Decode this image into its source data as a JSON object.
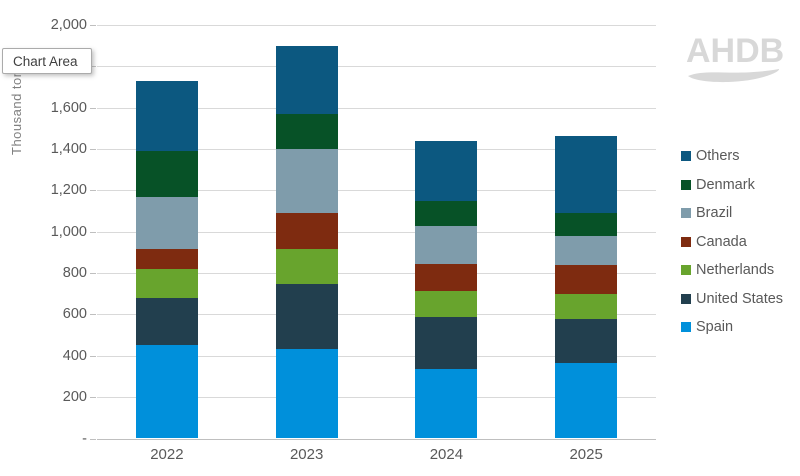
{
  "tooltip": {
    "label": "Chart Area"
  },
  "logo": {
    "text": "AHDB"
  },
  "palette": {
    "gridline": "#d9d9d9",
    "axis_line": "#bfbfbf",
    "axis_text": "#595959",
    "logo_gray": "#d8d8d8"
  },
  "chart_data": {
    "type": "bar",
    "stacked": true,
    "title": "",
    "xlabel": "",
    "ylabel": "Thousand tonnes",
    "grid": true,
    "legend_position": "right",
    "ylim": [
      0,
      2000
    ],
    "yticks": [
      {
        "value": 0,
        "label": "-"
      },
      {
        "value": 200,
        "label": "200"
      },
      {
        "value": 400,
        "label": "400"
      },
      {
        "value": 600,
        "label": "600"
      },
      {
        "value": 800,
        "label": "800"
      },
      {
        "value": 1000,
        "label": "1,000"
      },
      {
        "value": 1200,
        "label": "1,200"
      },
      {
        "value": 1400,
        "label": "1,400"
      },
      {
        "value": 1600,
        "label": "1,600"
      },
      {
        "value": 1800,
        "label": "1,800"
      },
      {
        "value": 2000,
        "label": "2,000"
      }
    ],
    "categories": [
      "2022",
      "2023",
      "2024",
      "2025"
    ],
    "series": [
      {
        "name": "Spain",
        "color": "#0090db",
        "values": [
          450,
          435,
          335,
          365
        ]
      },
      {
        "name": "United States",
        "color": "#223f4e",
        "values": [
          230,
          310,
          255,
          215
        ]
      },
      {
        "name": "Netherlands",
        "color": "#68a42d",
        "values": [
          140,
          170,
          125,
          120
        ]
      },
      {
        "name": "Canada",
        "color": "#7e2b10",
        "values": [
          95,
          175,
          130,
          140
        ]
      },
      {
        "name": "Brazil",
        "color": "#7f9cab",
        "values": [
          255,
          310,
          185,
          140
        ]
      },
      {
        "name": "Denmark",
        "color": "#075227",
        "values": [
          220,
          170,
          120,
          110
        ]
      },
      {
        "name": "Others",
        "color": "#0c5880",
        "values": [
          340,
          330,
          290,
          375
        ]
      }
    ],
    "totals": [
      1730,
      1900,
      1440,
      1465
    ]
  }
}
